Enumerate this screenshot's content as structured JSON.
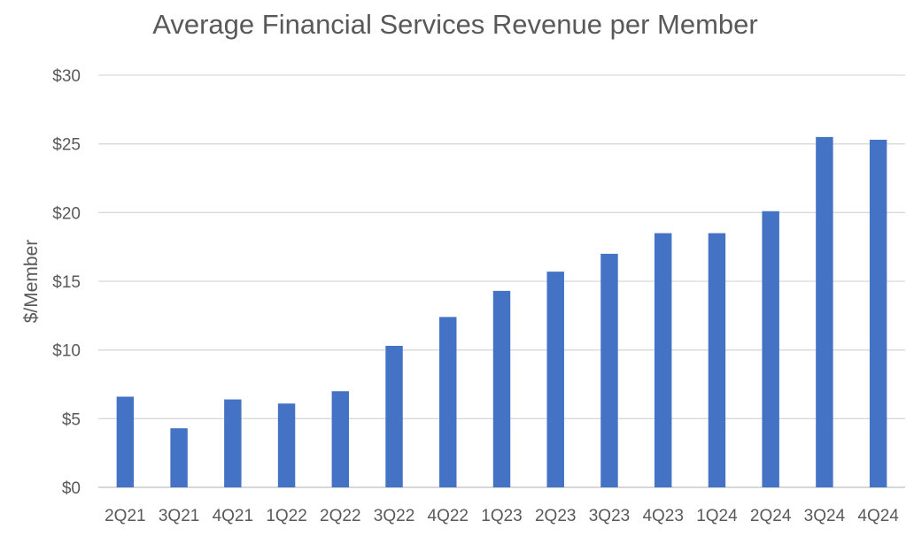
{
  "chart_data": {
    "type": "bar",
    "title": "Average Financial Services Revenue per Member",
    "xlabel": "",
    "ylabel": "$/Member",
    "categories": [
      "2Q21",
      "3Q21",
      "4Q21",
      "1Q22",
      "2Q22",
      "3Q22",
      "4Q22",
      "1Q23",
      "2Q23",
      "3Q23",
      "4Q23",
      "1Q24",
      "2Q24",
      "3Q24",
      "4Q24"
    ],
    "values": [
      6.6,
      4.3,
      6.4,
      6.1,
      7.0,
      10.3,
      12.4,
      14.3,
      15.7,
      17.0,
      18.5,
      18.5,
      20.1,
      25.5,
      25.3
    ],
    "ylim": [
      0,
      30
    ],
    "yticks": [
      0,
      5,
      10,
      15,
      20,
      25,
      30
    ],
    "ytick_labels": [
      "$0",
      "$5",
      "$10",
      "$15",
      "$20",
      "$25",
      "$30"
    ],
    "grid": true,
    "legend": "none",
    "bar_color": "#4472C4"
  }
}
